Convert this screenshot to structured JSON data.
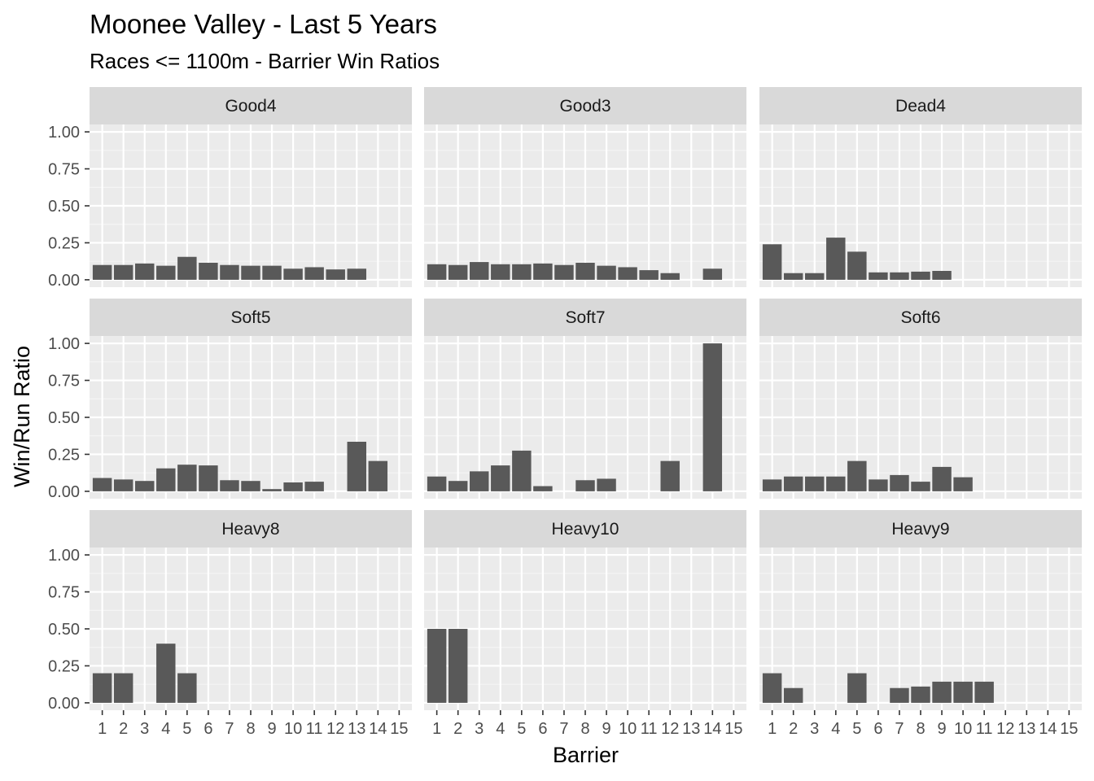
{
  "chart_data": {
    "type": "bar",
    "title": "Moonee Valley - Last 5 Years",
    "subtitle": "Races <= 1100m - Barrier Win Ratios",
    "xlabel": "Barrier",
    "ylabel": "Win/Run Ratio",
    "ylim": [
      0,
      1.0
    ],
    "y_ticks": [
      "0.00",
      "0.25",
      "0.50",
      "0.75",
      "1.00"
    ],
    "y_tick_values": [
      0,
      0.25,
      0.5,
      0.75,
      1.0
    ],
    "categories": [
      "1",
      "2",
      "3",
      "4",
      "5",
      "6",
      "7",
      "8",
      "9",
      "10",
      "11",
      "12",
      "13",
      "14",
      "15"
    ],
    "grid": true,
    "panels": [
      {
        "name": "Good4",
        "values": [
          0.1,
          0.1,
          0.11,
          0.095,
          0.155,
          0.115,
          0.1,
          0.095,
          0.095,
          0.075,
          0.085,
          0.07,
          0.075,
          null,
          null
        ]
      },
      {
        "name": "Good3",
        "values": [
          0.105,
          0.1,
          0.12,
          0.105,
          0.105,
          0.11,
          0.1,
          0.115,
          0.095,
          0.085,
          0.065,
          0.045,
          null,
          0.075,
          null
        ]
      },
      {
        "name": "Dead4",
        "values": [
          0.24,
          0.045,
          0.045,
          0.285,
          0.19,
          0.05,
          0.05,
          0.055,
          0.06,
          null,
          null,
          null,
          null,
          null,
          null
        ]
      },
      {
        "name": "Soft5",
        "values": [
          0.09,
          0.08,
          0.07,
          0.155,
          0.18,
          0.175,
          0.075,
          0.07,
          0.015,
          0.06,
          0.065,
          null,
          0.335,
          0.205,
          null
        ]
      },
      {
        "name": "Soft7",
        "values": [
          0.1,
          0.07,
          0.135,
          0.175,
          0.275,
          0.035,
          null,
          0.075,
          0.085,
          null,
          null,
          0.205,
          null,
          1.0,
          null
        ]
      },
      {
        "name": "Soft6",
        "values": [
          0.08,
          0.1,
          0.1,
          0.1,
          0.205,
          0.08,
          0.11,
          0.065,
          0.165,
          0.095,
          null,
          null,
          null,
          null,
          null
        ]
      },
      {
        "name": "Heavy8",
        "values": [
          0.2,
          0.2,
          null,
          0.4,
          0.2,
          null,
          null,
          null,
          null,
          null,
          null,
          null,
          null,
          null,
          null
        ]
      },
      {
        "name": "Heavy10",
        "values": [
          0.5,
          0.5,
          null,
          null,
          null,
          null,
          null,
          null,
          null,
          null,
          null,
          null,
          null,
          null,
          null
        ]
      },
      {
        "name": "Heavy9",
        "values": [
          0.2,
          0.1,
          null,
          null,
          0.2,
          null,
          0.1,
          0.11,
          0.143,
          0.143,
          0.143,
          null,
          null,
          null,
          null
        ]
      }
    ]
  },
  "colors": {
    "bar": "#595959",
    "panel_bg": "#ebebeb",
    "strip_bg": "#d9d9d9",
    "grid_major": "#ffffff",
    "grid_minor": "#f5f5f5",
    "tick": "#333333"
  }
}
